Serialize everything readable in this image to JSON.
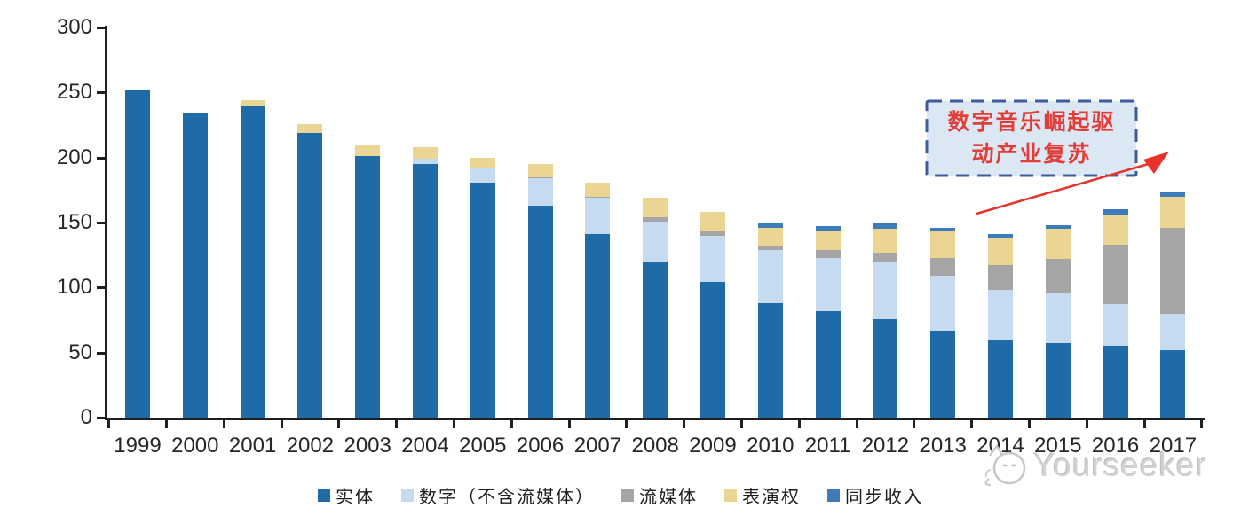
{
  "chart_data": {
    "type": "bar",
    "stacked": true,
    "title": "",
    "xlabel": "",
    "ylabel": "",
    "categories": [
      "1999",
      "2000",
      "2001",
      "2002",
      "2003",
      "2004",
      "2005",
      "2006",
      "2007",
      "2008",
      "2009",
      "2010",
      "2011",
      "2012",
      "2013",
      "2014",
      "2015",
      "2016",
      "2017"
    ],
    "series": [
      {
        "name": "实体",
        "color": "#1e6ba7",
        "values": [
          252,
          234,
          239,
          219,
          201,
          195,
          181,
          163,
          141,
          119,
          104,
          88,
          82,
          76,
          67,
          60,
          57,
          55,
          52
        ]
      },
      {
        "name": "数字（不含流媒体）",
        "color": "#c6daf0",
        "values": [
          0,
          0,
          0,
          0,
          0,
          4,
          11,
          21,
          28,
          32,
          36,
          41,
          41,
          43,
          42,
          38,
          39,
          32,
          28
        ]
      },
      {
        "name": "流媒体",
        "color": "#a5a5a5",
        "values": [
          0,
          0,
          0,
          0,
          0,
          0,
          0,
          1,
          1,
          3,
          3,
          3,
          6,
          8,
          14,
          19,
          26,
          46,
          66
        ]
      },
      {
        "name": "表演权",
        "color": "#ebd592",
        "values": [
          0,
          0,
          5,
          7,
          8,
          9,
          8,
          10,
          11,
          15,
          15,
          14,
          15,
          18,
          20,
          21,
          23,
          23,
          24
        ]
      },
      {
        "name": "同步收入",
        "color": "#3d7bba",
        "values": [
          0,
          0,
          0,
          0,
          0,
          0,
          0,
          0,
          0,
          0,
          0,
          3,
          3,
          4,
          3,
          3,
          3,
          4,
          3
        ]
      }
    ],
    "totals": [
      252,
      234,
      244,
      226,
      209,
      208,
      200,
      195,
      181,
      169,
      158,
      149,
      147,
      149,
      146,
      141,
      148,
      160,
      173
    ],
    "ylim": [
      0,
      300
    ],
    "yticks": [
      0,
      50,
      100,
      150,
      200,
      250,
      300
    ],
    "grid": false,
    "legend_position": "bottom",
    "axis_color": "#1f1f1f"
  },
  "annotation": {
    "lines": [
      "数字音乐崛起驱",
      "动产业复苏"
    ],
    "text_color": "#e23d36",
    "box_fill": "#dce7f4",
    "box_border": "#3c5c9e",
    "arrow_color": "#e8332a"
  },
  "watermark": {
    "text": "Yourseeker",
    "icon": "cat-magnifier-logo",
    "color": "#d2d2d2"
  }
}
